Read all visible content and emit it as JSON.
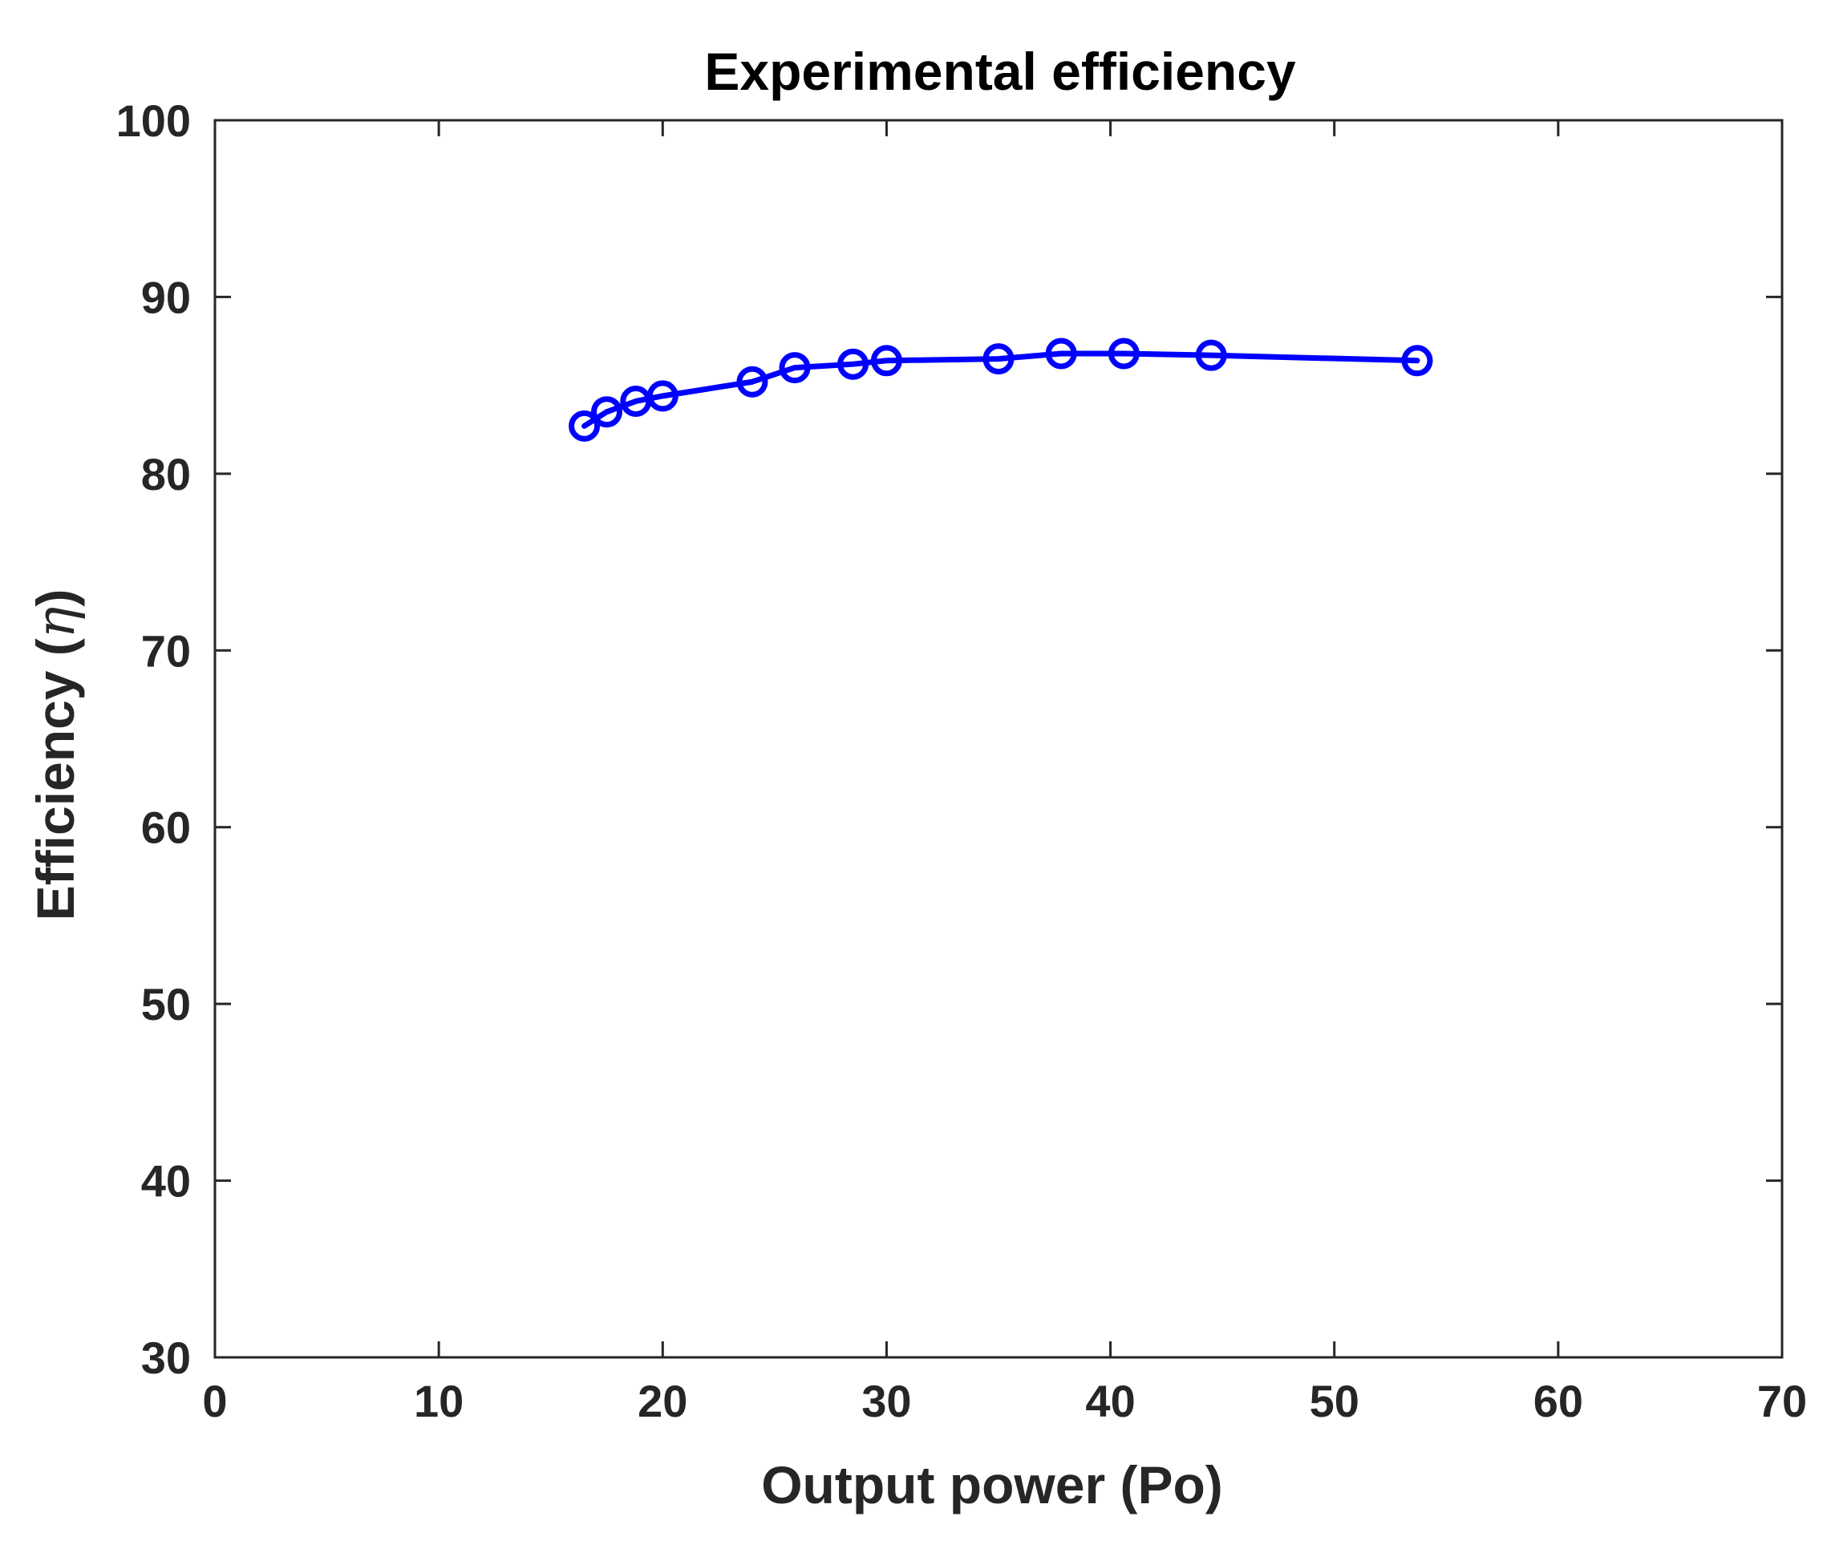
{
  "chart_data": {
    "type": "line",
    "title": "Experimental efficiency",
    "xlabel": "Output power (Po)",
    "ylabel_prefix": "Efficiency (",
    "ylabel_symbol": "η",
    "ylabel_suffix": ")",
    "xlim": [
      0,
      70
    ],
    "ylim": [
      30,
      100
    ],
    "xticks": [
      0,
      10,
      20,
      30,
      40,
      50,
      60,
      70
    ],
    "yticks": [
      30,
      40,
      50,
      60,
      70,
      80,
      90,
      100
    ],
    "xtick_labels": [
      "0",
      "10",
      "20",
      "30",
      "40",
      "50",
      "60",
      "70"
    ],
    "ytick_labels": [
      "30",
      "40",
      "50",
      "60",
      "70",
      "80",
      "90",
      "100"
    ],
    "grid": false,
    "series": [
      {
        "name": "Efficiency",
        "color": "#0000ff",
        "marker": "circle",
        "x": [
          16.5,
          17.5,
          18.8,
          20.0,
          24.0,
          25.9,
          28.5,
          30.0,
          35.0,
          37.8,
          40.6,
          44.5,
          53.7
        ],
        "y": [
          82.7,
          83.5,
          84.1,
          84.4,
          85.2,
          86.0,
          86.2,
          86.4,
          86.5,
          86.8,
          86.8,
          86.7,
          86.4
        ]
      }
    ]
  }
}
